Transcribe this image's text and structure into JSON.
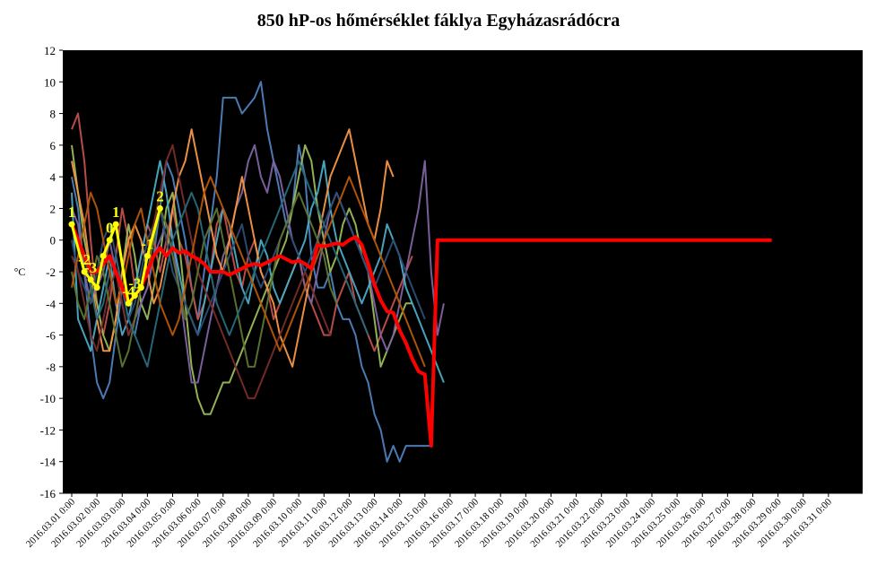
{
  "chart_data": {
    "type": "line",
    "title": "850 hP-os hőmérséklet fáklya Egyházasrádócra",
    "xlabel": "",
    "ylabel": "°C",
    "ylim": [
      -16,
      12
    ],
    "y_ticks": [
      "12",
      "10",
      "8",
      "6",
      "4",
      "2",
      "0",
      "-2",
      "-4",
      "-6",
      "-8",
      "-10",
      "-12",
      "-14",
      "-16"
    ],
    "x_tick_labels": [
      "2016.03.01 0:00",
      "2016.03.02 0:00",
      "2016.03.03 0:00",
      "2016.03.04 0:00",
      "2016.03.05 0:00",
      "2016.03.06 0:00",
      "2016.03.07 0:00",
      "2016.03.08 0:00",
      "2016.03.09 0:00",
      "2016.03.10 0:00",
      "2016.03.11 0:00",
      "2016.03.12 0:00",
      "2016.03.13 0:00",
      "2016.03.14 0:00",
      "2016.03.15 0:00",
      "2016.03.16 0:00",
      "2016.03.17 0:00",
      "2016.03.18 0:00",
      "2016.03.19 0:00",
      "2016.03.20 0:00",
      "2016.03.21 0:00",
      "2016.03.22 0:00",
      "2016.03.23 0:00",
      "2016.03.24 0:00",
      "2016.03.25 0:00",
      "2016.03.26 0:00",
      "2016.03.27 0:00",
      "2016.03.28 0:00",
      "2016.03.29 0:00",
      "2016.03.30 0:00",
      "2016.03.31 0:00"
    ],
    "x_start": "2016-03-01 0:00",
    "x_step_days": 0.25,
    "grid": false,
    "legend": "none",
    "background": "#000000",
    "mean_series": {
      "color": "#ff0000",
      "values": [
        1,
        0,
        -1,
        -2,
        -2,
        -1.5,
        -1,
        -2,
        -3,
        -4,
        -3.5,
        -3,
        -2,
        -1,
        -0.5,
        -1,
        -0.5,
        -0.8,
        -0.7,
        -1,
        -1.2,
        -1.5,
        -2,
        -2,
        -2,
        -2.2,
        -2,
        -1.8,
        -1.6,
        -1.5,
        -1.6,
        -1.4,
        -1.2,
        -1,
        -1.2,
        -1.4,
        -1.3,
        -1.5,
        -1.8,
        -0.3,
        -0.4,
        -0.3,
        -0.2,
        -0.3,
        0,
        0.2,
        -0.3,
        -1.5,
        -2.8,
        -3.8,
        -4.5,
        -4.6,
        -5.7,
        -6.5,
        -7.5,
        -8.3,
        -8.5,
        -13,
        0,
        0,
        0,
        0,
        0,
        0,
        0,
        0,
        0,
        0,
        0,
        0,
        0,
        0,
        0,
        0,
        0,
        0,
        0,
        0,
        0,
        0,
        0,
        0,
        0,
        0,
        0,
        0,
        0,
        0,
        0,
        0,
        0,
        0,
        0,
        0,
        0,
        0,
        0,
        0,
        0,
        0,
        0,
        0,
        0,
        0,
        0,
        0,
        0,
        0,
        0,
        0,
        0,
        0,
        0,
        0,
        0,
        0,
        0,
        0,
        0,
        0,
        0,
        0,
        0,
        0,
        0,
        0,
        0,
        0,
        0,
        0,
        0
      ],
      "segments": [
        [
          0,
          47
        ],
        [
          47,
          58
        ],
        [
          58,
          120
        ]
      ]
    },
    "control_series": {
      "color": "#ffff00",
      "values": [
        1,
        -2,
        -2.5,
        -3,
        -1,
        0,
        1,
        -4,
        -3.5,
        -3,
        -1,
        2
      ],
      "indices": [
        0,
        2,
        3,
        4,
        5,
        6,
        7,
        9,
        10,
        11,
        12,
        14
      ],
      "labels": [
        "1",
        "-2",
        "-3",
        "",
        "",
        "0",
        "1",
        "-4",
        "-3",
        "",
        "-1",
        "2"
      ]
    },
    "ensemble_series": [
      {
        "color": "#4f81bd",
        "values": [
          4,
          2,
          -2,
          -6,
          -9,
          -10,
          -9,
          -6,
          -3,
          -5,
          -6,
          -4,
          -3,
          -1,
          2,
          5,
          4,
          2,
          0,
          -3,
          -5,
          -2,
          1,
          4,
          9,
          9,
          9,
          8,
          8.5,
          9,
          10,
          7,
          5,
          3,
          1,
          2,
          6,
          4,
          -1,
          -3,
          -3,
          -2,
          -4,
          -5,
          -5,
          -6,
          -8,
          -9,
          -11,
          -12,
          -14,
          -13,
          -14,
          -13,
          -13,
          -13,
          -13,
          -13
        ]
      },
      {
        "color": "#c0504d",
        "values": [
          7,
          8,
          5,
          0,
          -4,
          -6,
          -4,
          -1,
          2,
          0,
          -3,
          -1,
          1,
          0,
          -2,
          0,
          2,
          0,
          -1,
          -3,
          -5,
          -4,
          -2,
          1,
          2,
          0,
          -2,
          -3,
          -1,
          0,
          -2,
          -3,
          -5,
          -4,
          -3,
          -2,
          -1,
          -3,
          -4,
          -5,
          -6,
          -6,
          -4,
          -3,
          -2,
          -4,
          -5,
          -6,
          -7,
          -6,
          -5,
          -4,
          -3,
          -2,
          -1
        ]
      },
      {
        "color": "#9bbb59",
        "values": [
          6,
          3,
          0,
          -2,
          -4,
          -6,
          -7,
          -5,
          -2,
          1,
          -1,
          -4,
          -5,
          -3,
          -1,
          2,
          3,
          0,
          -4,
          -8,
          -10,
          -11,
          -11,
          -10,
          -9,
          -9,
          -8,
          -7,
          -6,
          -5,
          -4,
          -3,
          -2,
          -1,
          0,
          2,
          4,
          6,
          5,
          2,
          0,
          -2,
          -1,
          1,
          2,
          1,
          -1,
          -2,
          -5,
          -8,
          -7,
          -6,
          -5,
          -4,
          -4
        ]
      },
      {
        "color": "#8064a2",
        "values": [
          2,
          1,
          -2,
          -4,
          -3,
          -2,
          0,
          -2,
          -4,
          -6,
          -5,
          -4,
          -3,
          -1,
          0,
          1,
          0,
          -3,
          -6,
          -9,
          -9,
          -7,
          -5,
          -3,
          -1,
          0,
          2,
          3,
          5,
          6,
          4,
          3,
          5,
          4,
          2,
          0,
          -1,
          -3,
          -4,
          -2,
          0,
          2,
          3,
          2,
          1,
          0,
          -1,
          -2,
          -4,
          -6,
          -7,
          -6,
          -4,
          -2,
          0,
          2,
          5,
          -2,
          -6,
          -4
        ]
      },
      {
        "color": "#4bacc6",
        "values": [
          3,
          -5,
          -6,
          -7,
          -5,
          -3,
          -1,
          -4,
          -6,
          -5,
          -3,
          -1,
          1,
          3,
          5,
          3,
          0,
          -2,
          -4,
          -5,
          -6,
          -4,
          -2,
          0,
          2,
          1,
          -1,
          -3,
          -4,
          -2,
          0,
          -1,
          -3,
          -4,
          -3,
          -2,
          -1,
          0,
          2,
          3,
          5,
          2,
          0,
          -1,
          -2,
          -3,
          -4,
          -3,
          -2,
          -1,
          1,
          0,
          -1,
          -3,
          -4,
          -5,
          -6,
          -7,
          -8,
          -9
        ]
      },
      {
        "color": "#f79646",
        "values": [
          5,
          3,
          1,
          -2,
          -5,
          -7,
          -7,
          -5,
          -2,
          0,
          1,
          0,
          -2,
          -4,
          -3,
          -1,
          2,
          4,
          5,
          7,
          5,
          3,
          1,
          -1,
          -2,
          0,
          2,
          4,
          2,
          0,
          -2,
          -3,
          -4,
          -6,
          -7,
          -8,
          -6,
          -4,
          -2,
          0,
          2,
          4,
          5,
          6,
          7,
          5,
          3,
          1,
          0,
          2,
          5,
          4
        ]
      },
      {
        "color": "#2c4d75",
        "values": [
          0,
          -2,
          -3,
          -4,
          -2,
          0,
          1,
          -1,
          -3,
          -5,
          -4,
          -2,
          0,
          1,
          2,
          0,
          -2,
          -3,
          -4,
          -5,
          -6,
          -5,
          -4,
          -3,
          -2,
          -1,
          0,
          1,
          -1,
          -2,
          -3,
          -2,
          -1,
          0,
          1,
          0,
          -1,
          -2,
          -1,
          0,
          1,
          2,
          3,
          2,
          1,
          0,
          -1,
          -2,
          -3,
          -2,
          -1,
          0,
          -1,
          -2,
          -3,
          -4,
          -5
        ]
      },
      {
        "color": "#772c2a",
        "values": [
          -1,
          -2,
          -4,
          -6,
          -7,
          -5,
          -3,
          -2,
          -4,
          -6,
          -5,
          -3,
          -1,
          1,
          3,
          5,
          6,
          4,
          2,
          0,
          -2,
          -3,
          -4,
          -5,
          -6,
          -7,
          -8,
          -9,
          -10,
          -10,
          -9,
          -8,
          -7,
          -6,
          -5,
          -4,
          -3,
          -2,
          -3,
          -4,
          -5,
          -6
        ]
      },
      {
        "color": "#5f7530",
        "values": [
          -2,
          -4,
          -5,
          -3,
          -1,
          -2,
          -4,
          -6,
          -8,
          -7,
          -5,
          -3,
          -2,
          0,
          2,
          1,
          -1,
          -3,
          -5,
          -4,
          -2,
          0,
          1,
          2,
          0,
          -2,
          -4,
          -6,
          -8,
          -8,
          -6,
          -4,
          -2,
          0,
          1,
          2,
          3,
          2,
          1,
          0,
          -1,
          -3,
          -4
        ]
      },
      {
        "color": "#276a7c",
        "values": [
          1,
          0,
          -1,
          -3,
          -5,
          -4,
          -2,
          -1,
          -3,
          -5,
          -6,
          -7,
          -8,
          -6,
          -4,
          -2,
          0,
          1,
          2,
          3,
          2,
          0,
          -2,
          -4,
          -5,
          -6,
          -5,
          -4,
          -3,
          -2,
          -1,
          0,
          1,
          2,
          3,
          4,
          5,
          4,
          3,
          2,
          1,
          0,
          -1,
          -2,
          -3,
          -4,
          -5,
          -6
        ]
      },
      {
        "color": "#b65708",
        "values": [
          -3,
          -1,
          1,
          3,
          2,
          0,
          -2,
          -4,
          -3,
          -1,
          1,
          2,
          0,
          -2,
          -4,
          -5,
          -6,
          -5,
          -3,
          -1,
          1,
          3,
          4,
          3,
          2,
          1,
          0,
          -1,
          -2,
          -3,
          -4,
          -5,
          -6,
          -7,
          -6,
          -5,
          -4,
          -3,
          -2,
          -1,
          0,
          1,
          2,
          3,
          4,
          3,
          2,
          1,
          0,
          -1,
          -2,
          -3,
          -4,
          -5,
          -6,
          -7,
          -8
        ]
      }
    ]
  }
}
